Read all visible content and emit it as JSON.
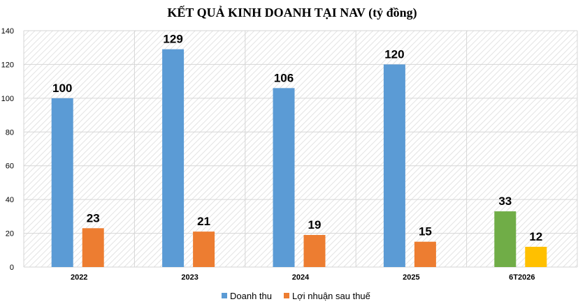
{
  "chart_data": {
    "type": "bar",
    "title": "KẾT QUẢ KINH DOANH TẠI NAV (tỷ đồng)",
    "categories": [
      "2022",
      "2023",
      "2024",
      "2025",
      "6T2026"
    ],
    "series": [
      {
        "name": "Doanh thu",
        "color": "#5b9bd5",
        "values": [
          100,
          129,
          106,
          120,
          33
        ],
        "point_colors": [
          null,
          null,
          null,
          null,
          "#70ad47"
        ]
      },
      {
        "name": "Lợi nhuận sau thuế",
        "color": "#ed7d31",
        "values": [
          23,
          21,
          19,
          15,
          12
        ],
        "point_colors": [
          null,
          null,
          null,
          null,
          "#ffc000"
        ]
      }
    ],
    "yticks": [
      "0",
      "20",
      "40",
      "60",
      "80",
      "100",
      "120",
      "140"
    ],
    "ylim": [
      0,
      140
    ],
    "grid": true,
    "legend": "bottom"
  }
}
